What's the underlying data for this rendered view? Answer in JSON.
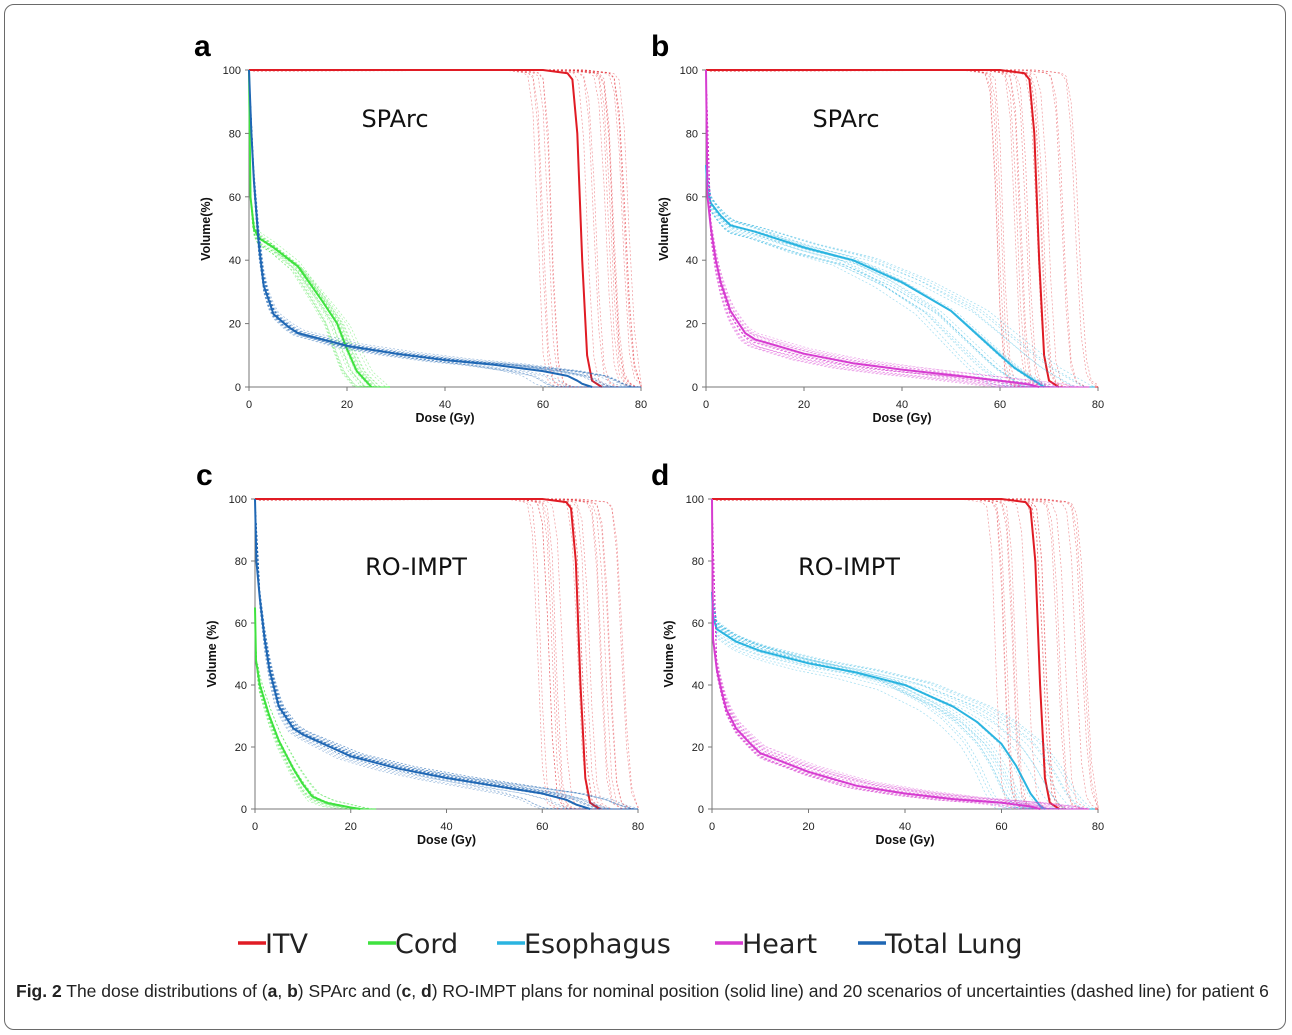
{
  "colors": {
    "ITV": "#e01b24",
    "Cord": "#3fe23f",
    "Esophagus": "#2ab4e0",
    "Heart": "#d63cd0",
    "Total Lung": "#1f67b4"
  },
  "legend": {
    "position": "bottom-center",
    "items": [
      "ITV",
      "Cord",
      "Esophagus",
      "Heart",
      "Total Lung"
    ]
  },
  "caption": {
    "label": "Fig. 2",
    "parts": [
      {
        "t": " The dose distributions of (",
        "b": false
      },
      {
        "t": "a",
        "b": true
      },
      {
        "t": ", ",
        "b": false
      },
      {
        "t": "b",
        "b": true
      },
      {
        "t": ") SPArc and (",
        "b": false
      },
      {
        "t": "c",
        "b": true
      },
      {
        "t": ", ",
        "b": false
      },
      {
        "t": "d",
        "b": true
      },
      {
        "t": ") RO-IMPT plans for nominal position (solid line) and 20 scenarios of uncertainties (dashed line) for patient 6",
        "b": false
      }
    ]
  },
  "chart_data": [
    {
      "panel": "a",
      "type": "line",
      "title": "SPArc",
      "xlabel": "Dose (Gy)",
      "ylabel": "Volume(%)",
      "xlim": [
        0,
        80
      ],
      "ylim": [
        0,
        100
      ],
      "xticks": [
        0,
        20,
        40,
        60,
        80
      ],
      "yticks": [
        0,
        20,
        40,
        60,
        80,
        100
      ],
      "uncertainty_scenarios": 20,
      "series": [
        {
          "name": "ITV",
          "x": [
            0,
            60,
            65,
            66,
            67,
            68,
            69,
            70,
            72
          ],
          "y": [
            100,
            100,
            99,
            97,
            80,
            40,
            10,
            2,
            0
          ],
          "spread": 0.5
        },
        {
          "name": "Cord",
          "x": [
            0,
            0.3,
            1,
            2,
            5,
            10,
            15,
            18,
            20,
            22,
            25
          ],
          "y": [
            100,
            60,
            50,
            47,
            44,
            38,
            27,
            20,
            12,
            5,
            0
          ],
          "spread": 2.5
        },
        {
          "name": "Total Lung",
          "x": [
            0,
            0.5,
            1,
            2,
            3,
            5,
            8,
            10,
            20,
            30,
            40,
            50,
            60,
            65,
            67,
            68,
            70
          ],
          "y": [
            100,
            80,
            65,
            45,
            32,
            23,
            19,
            17,
            13,
            10.5,
            8.5,
            7,
            5,
            3.5,
            2,
            1,
            0
          ],
          "spread": 1
        }
      ]
    },
    {
      "panel": "b",
      "type": "line",
      "title": "SPArc",
      "xlabel": "Dose (Gy)",
      "ylabel": "Volume(%)",
      "xlim": [
        0,
        80
      ],
      "ylim": [
        0,
        100
      ],
      "xticks": [
        0,
        20,
        40,
        60,
        80
      ],
      "yticks": [
        0,
        20,
        40,
        60,
        80,
        100
      ],
      "uncertainty_scenarios": 20,
      "series": [
        {
          "name": "ITV",
          "x": [
            0,
            60,
            65,
            66,
            67,
            68,
            69,
            70,
            72
          ],
          "y": [
            100,
            100,
            99,
            97,
            80,
            40,
            10,
            2,
            0
          ],
          "spread": 0.5
        },
        {
          "name": "Esophagus",
          "x": [
            0,
            0.3,
            1,
            3,
            5,
            10,
            20,
            30,
            40,
            50,
            55,
            60,
            63,
            66,
            68,
            69
          ],
          "y": [
            70,
            62,
            58,
            54,
            51,
            49,
            44,
            40,
            33,
            24,
            17,
            10,
            6,
            3,
            1,
            0
          ],
          "spread": 3
        },
        {
          "name": "Heart",
          "x": [
            0,
            0.3,
            1,
            2,
            3,
            5,
            8,
            10,
            20,
            30,
            40,
            50,
            60,
            66,
            68
          ],
          "y": [
            100,
            60,
            50,
            40,
            33,
            24,
            17,
            15,
            10.5,
            7.5,
            5.5,
            3.8,
            2,
            0.8,
            0
          ],
          "spread": 3
        }
      ]
    },
    {
      "panel": "c",
      "type": "line",
      "title": "RO-IMPT",
      "xlabel": "Dose (Gy)",
      "ylabel": "Volume (%)",
      "xlim": [
        0,
        80
      ],
      "ylim": [
        0,
        100
      ],
      "xticks": [
        0,
        20,
        40,
        60,
        80
      ],
      "yticks": [
        0,
        20,
        40,
        60,
        80,
        100
      ],
      "uncertainty_scenarios": 20,
      "series": [
        {
          "name": "ITV",
          "x": [
            0,
            60,
            65,
            66,
            67,
            68,
            69,
            70,
            72
          ],
          "y": [
            100,
            100,
            99,
            97,
            80,
            40,
            10,
            2,
            0
          ],
          "spread": 0.5
        },
        {
          "name": "Cord",
          "x": [
            0,
            0.2,
            1,
            3,
            5,
            8,
            10,
            12,
            15,
            20,
            22
          ],
          "y": [
            65,
            48,
            40,
            30,
            22,
            13,
            8,
            4,
            2,
            0.5,
            0
          ],
          "spread": 3
        },
        {
          "name": "Total Lung",
          "x": [
            0,
            0.3,
            1,
            2,
            3,
            5,
            8,
            10,
            20,
            30,
            40,
            50,
            60,
            65,
            67,
            70
          ],
          "y": [
            100,
            80,
            68,
            55,
            45,
            33,
            26,
            24,
            17,
            13,
            10,
            7.5,
            5,
            3,
            1.5,
            0
          ],
          "spread": 1.5
        }
      ]
    },
    {
      "panel": "d",
      "type": "line",
      "title": "RO-IMPT",
      "xlabel": "Dose (Gy)",
      "ylabel": "Volume (%)",
      "xlim": [
        0,
        80
      ],
      "ylim": [
        0,
        100
      ],
      "xticks": [
        0,
        20,
        40,
        60,
        80
      ],
      "yticks": [
        0,
        20,
        40,
        60,
        80,
        100
      ],
      "uncertainty_scenarios": 20,
      "series": [
        {
          "name": "ITV",
          "x": [
            0,
            60,
            65,
            66,
            67,
            68,
            69,
            70,
            72
          ],
          "y": [
            100,
            100,
            99,
            97,
            80,
            40,
            10,
            2,
            0
          ],
          "spread": 0.5
        },
        {
          "name": "Esophagus",
          "x": [
            0,
            0.2,
            1,
            3,
            5,
            10,
            20,
            30,
            40,
            50,
            55,
            60,
            63,
            66,
            68,
            69
          ],
          "y": [
            70,
            62,
            58,
            56,
            54,
            51,
            47,
            44,
            40,
            33,
            28,
            21,
            14,
            5,
            1,
            0
          ],
          "spread": 3
        },
        {
          "name": "Heart",
          "x": [
            0,
            0.2,
            1,
            2,
            3,
            5,
            8,
            10,
            20,
            30,
            40,
            50,
            60,
            66,
            68
          ],
          "y": [
            100,
            55,
            45,
            38,
            32,
            26,
            21,
            18,
            12,
            7.5,
            5,
            3.2,
            2,
            0.8,
            0
          ],
          "spread": 3
        }
      ]
    }
  ]
}
